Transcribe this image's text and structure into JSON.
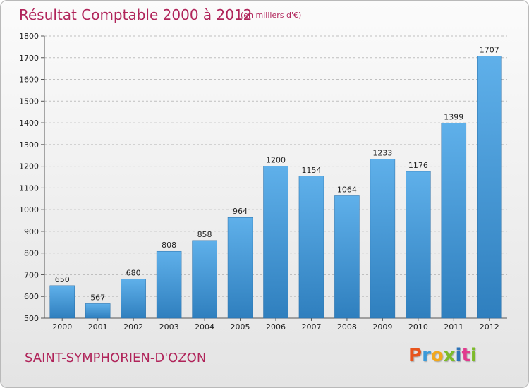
{
  "title": "Résultat Comptable 2000 à 2012",
  "subtitle": "(en milliers d'€)",
  "commune": "SAINT-SYMPHORIEN-D'OZON",
  "brand": {
    "letters": [
      "P",
      "r",
      "o",
      "x",
      "i",
      "t",
      "i"
    ],
    "colors": [
      "#e8541c",
      "#3a9ad9",
      "#f2a81d",
      "#7dbb2a",
      "#2e73b8",
      "#e23a8e",
      "#7dbb2a"
    ]
  },
  "colors": {
    "bar_top": "#5fb0ea",
    "bar_bottom": "#2f7fbe",
    "grid": "#bfbfbf",
    "accent": "#b0245a"
  },
  "chart_data": {
    "type": "bar",
    "title": "Résultat Comptable 2000 à 2012",
    "xlabel": "",
    "ylabel": "",
    "categories": [
      "2000",
      "2001",
      "2002",
      "2003",
      "2004",
      "2005",
      "2006",
      "2007",
      "2008",
      "2009",
      "2010",
      "2011",
      "2012"
    ],
    "values": [
      650,
      567,
      680,
      808,
      858,
      964,
      1200,
      1154,
      1064,
      1233,
      1176,
      1399,
      1707
    ],
    "ylim": [
      500,
      1800
    ],
    "yticks": [
      500,
      600,
      700,
      800,
      900,
      1000,
      1100,
      1200,
      1300,
      1400,
      1500,
      1600,
      1700,
      1800
    ],
    "grid": true
  }
}
